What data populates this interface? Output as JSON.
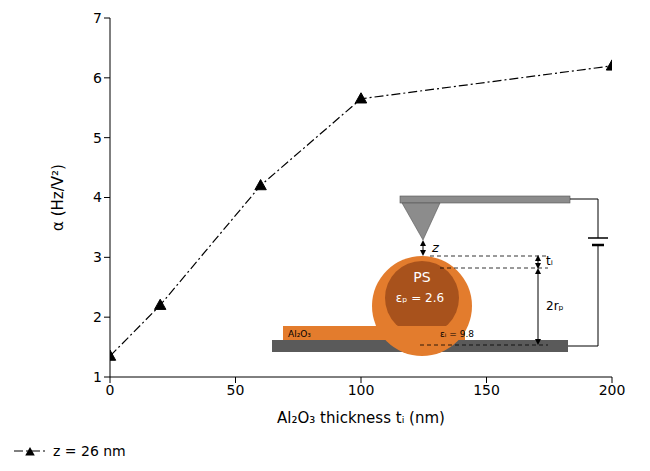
{
  "chart_data": {
    "type": "line",
    "x_label": "Al₂O₃ thickness tᵢ (nm)",
    "y_label": "α (Hz/V²)",
    "xlim": [
      0,
      200
    ],
    "xticks": [
      0,
      50,
      100,
      150,
      200
    ],
    "ylim": [
      1,
      7
    ],
    "yticks": [
      1,
      2,
      3,
      4,
      5,
      6,
      7
    ],
    "grid": false,
    "legend": "bottom-left",
    "series": [
      {
        "name": "z = 26 nm",
        "color": "#000000",
        "marker": "triangle",
        "line_style": "dashdot",
        "x": [
          0,
          20,
          60,
          100,
          200
        ],
        "values": [
          1.35,
          2.2,
          4.2,
          5.65,
          6.2
        ]
      }
    ],
    "annotations": [
      "z",
      "tᵢ",
      "2rₚ",
      "PS",
      "εₚ = 2.6",
      "Al₂O₃",
      "εᵢ = 9.8"
    ]
  }
}
